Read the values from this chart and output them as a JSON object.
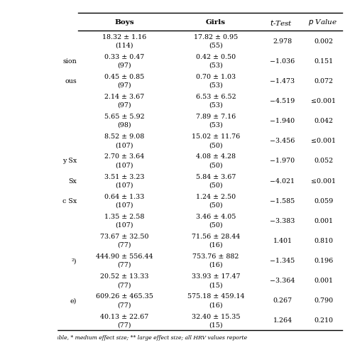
{
  "headers": [
    "Boys",
    "Girls",
    "t-Test",
    "p Value"
  ],
  "rows": [
    [
      "18.32 ± 1.16\n(114)",
      "17.82 ± 0.95\n(55)",
      "2.978",
      "0.002"
    ],
    [
      "0.33 ± 0.47\n(97)",
      "0.42 ± 0.50\n(53)",
      "−1.036",
      "0.151"
    ],
    [
      "0.45 ± 0.85\n(97)",
      "0.70 ± 1.03\n(53)",
      "−1.473",
      "0.072"
    ],
    [
      "2.14 ± 3.67\n(97)",
      "6.53 ± 6.52\n(53)",
      "−4.519",
      "≤0.001"
    ],
    [
      "5.65 ± 5.92\n(98)",
      "7.89 ± 7.16\n(53)",
      "−1.940",
      "0.042"
    ],
    [
      "8.52 ± 9.08\n(107)",
      "15.02 ± 11.76\n(50)",
      "−3.456",
      "≤0.001"
    ],
    [
      "2.70 ± 3.64\n(107)",
      "4.08 ± 4.28\n(50)",
      "−1.970",
      "0.052"
    ],
    [
      "3.51 ± 3.23\n(107)",
      "5.84 ± 3.67\n(50)",
      "−4.021",
      "≤0.001"
    ],
    [
      "0.64 ± 1.33\n(107)",
      "1.24 ± 2.50\n(50)",
      "−1.585",
      "0.059"
    ],
    [
      "1.35 ± 2.58\n(107)",
      "3.46 ± 4.05\n(50)",
      "−3.383",
      "0.001"
    ],
    [
      "73.67 ± 32.50\n(77)",
      "71.56 ± 28.44\n(16)",
      "1.401",
      "0.810"
    ],
    [
      "444.90 ± 556.44\n(77)",
      "753.76 ± 882\n(16)",
      "−1.345",
      "0.196"
    ],
    [
      "20.52 ± 13.33\n(77)",
      "33.93 ± 17.47\n(15)",
      "−3.364",
      "0.001"
    ],
    [
      "609.26 ± 465.35\n(77)",
      "575.18 ± 459.14\n(16)",
      "0.267",
      "0.790"
    ],
    [
      "40.13 ± 22.67\n(77)",
      "32.40 ± 15.35\n(15)",
      "1.264",
      "0.210"
    ]
  ],
  "row_labels": [
    "",
    "sion",
    "ous",
    "",
    "",
    "",
    "y Sx",
    "Sx",
    "c Sx",
    "",
    "",
    "²)",
    "",
    "e)",
    ""
  ],
  "footer": "() N for each variable, * medium effect size; ** large effect size; all HRV values reporte",
  "bg_color": "#ffffff",
  "text_color": "#000000",
  "line_color": "#000000",
  "font_size": 6.8,
  "header_font_size": 7.5
}
